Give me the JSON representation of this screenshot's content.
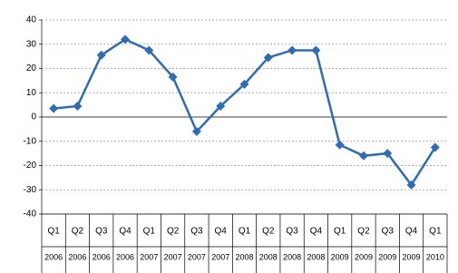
{
  "chart_data": {
    "type": "line",
    "categories": [
      "Q1",
      "Q2",
      "Q3",
      "Q4",
      "Q1",
      "Q2",
      "Q3",
      "Q4",
      "Q1",
      "Q2",
      "Q3",
      "Q4",
      "Q1",
      "Q2",
      "Q3",
      "Q4",
      "Q1"
    ],
    "category_years": [
      "2006",
      "2006",
      "2006",
      "2006",
      "2007",
      "2007",
      "2007",
      "2007",
      "2008",
      "2008",
      "2008",
      "2008",
      "2009",
      "2009",
      "2009",
      "2009",
      "2010"
    ],
    "values": [
      3.5,
      4.5,
      25.5,
      32,
      27.5,
      16.5,
      -6,
      4.5,
      13.5,
      24.5,
      27.5,
      27.5,
      -11.5,
      -16,
      -15,
      -28,
      -12.5
    ],
    "color": "#2f6db3",
    "ylim": [
      -40,
      40
    ],
    "yticks": [
      -40,
      -30,
      -20,
      -10,
      0,
      10,
      20,
      30,
      40
    ],
    "grid": true
  }
}
